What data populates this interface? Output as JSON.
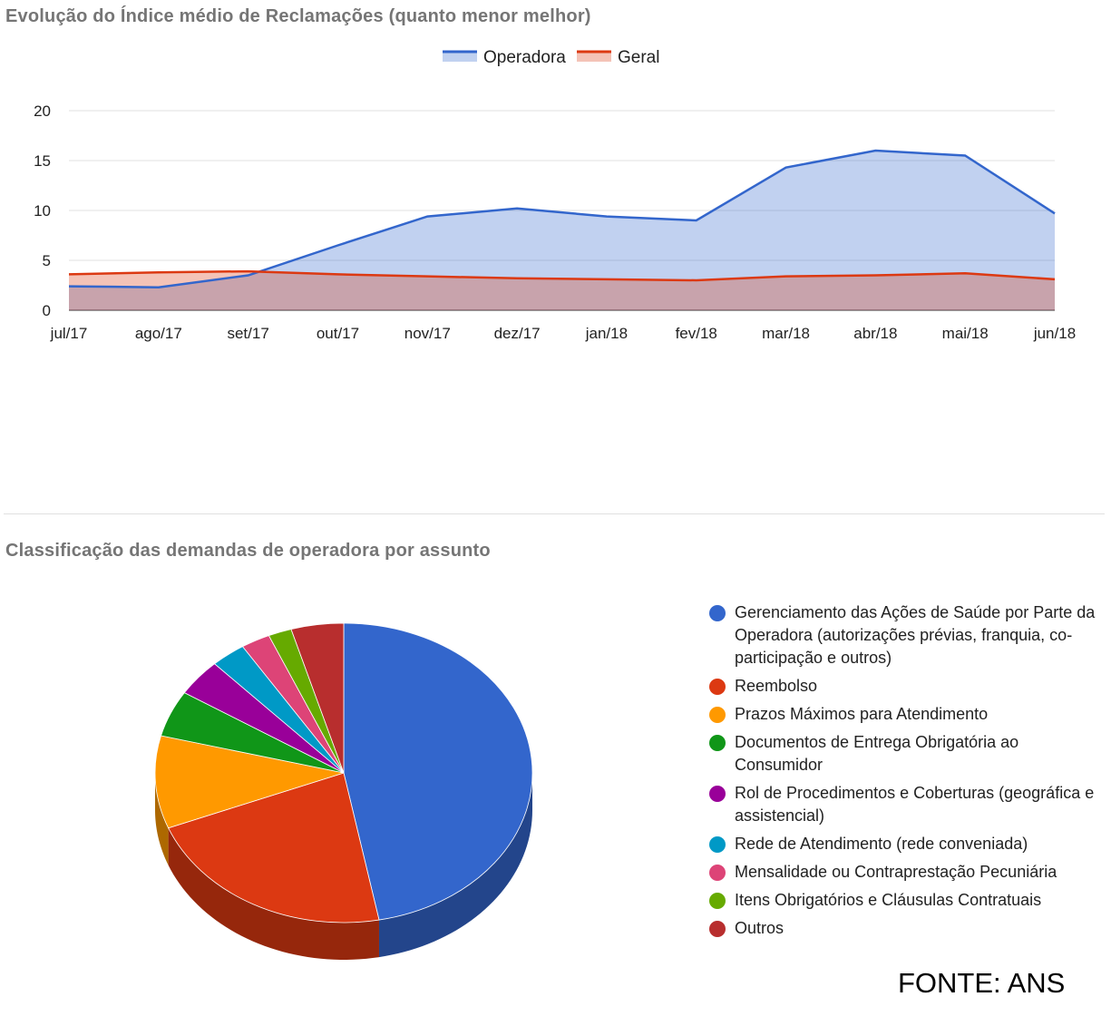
{
  "chart_data": [
    {
      "type": "area",
      "title": "Evolução do Índice médio de Reclamações (quanto menor melhor)",
      "categories": [
        "jul/17",
        "ago/17",
        "set/17",
        "out/17",
        "nov/17",
        "dez/17",
        "jan/18",
        "fev/18",
        "mar/18",
        "abr/18",
        "mai/18",
        "jun/18"
      ],
      "series": [
        {
          "name": "Operadora",
          "color": "#3366cc",
          "values": [
            2.4,
            2.3,
            3.5,
            6.5,
            9.4,
            10.2,
            9.4,
            9.0,
            14.3,
            16.0,
            15.5,
            9.7
          ]
        },
        {
          "name": "Geral",
          "color": "#dc3912",
          "values": [
            3.6,
            3.8,
            3.9,
            3.6,
            3.4,
            3.2,
            3.1,
            3.0,
            3.4,
            3.5,
            3.7,
            3.1
          ]
        }
      ],
      "ylim": [
        0,
        20
      ],
      "yticks": [
        0,
        5,
        10,
        15,
        20
      ],
      "grid": true,
      "legend_position": "top"
    },
    {
      "type": "pie",
      "title": "Classificação das demandas de operadora por assunto",
      "slices": [
        {
          "label": "Gerenciamento das Ações de Saúde por Parte da Operadora (autorizações prévias, franquia, co-participação e outros)",
          "value": 47.0,
          "color": "#3366cc"
        },
        {
          "label": "Reembolso",
          "value": 22.0,
          "color": "#dc3912"
        },
        {
          "label": "Prazos Máximos para Atendimento",
          "value": 10.0,
          "color": "#ff9900"
        },
        {
          "label": "Documentos de Entrega Obrigatória ao Consumidor",
          "value": 5.0,
          "color": "#109618"
        },
        {
          "label": "Rol de Procedimentos e Coberturas (geográfica e assistencial)",
          "value": 4.0,
          "color": "#990099"
        },
        {
          "label": "Rede de Atendimento (rede conveniada)",
          "value": 3.0,
          "color": "#0099c6"
        },
        {
          "label": "Mensalidade ou Contraprestação Pecuniária",
          "value": 2.5,
          "color": "#dd4477"
        },
        {
          "label": "Itens Obrigatórios e Cláusulas Contratuais",
          "value": 2.0,
          "color": "#66aa00"
        },
        {
          "label": "Outros",
          "value": 4.5,
          "color": "#b82e2e"
        }
      ],
      "legend_position": "right"
    }
  ],
  "source": "FONTE: ANS"
}
